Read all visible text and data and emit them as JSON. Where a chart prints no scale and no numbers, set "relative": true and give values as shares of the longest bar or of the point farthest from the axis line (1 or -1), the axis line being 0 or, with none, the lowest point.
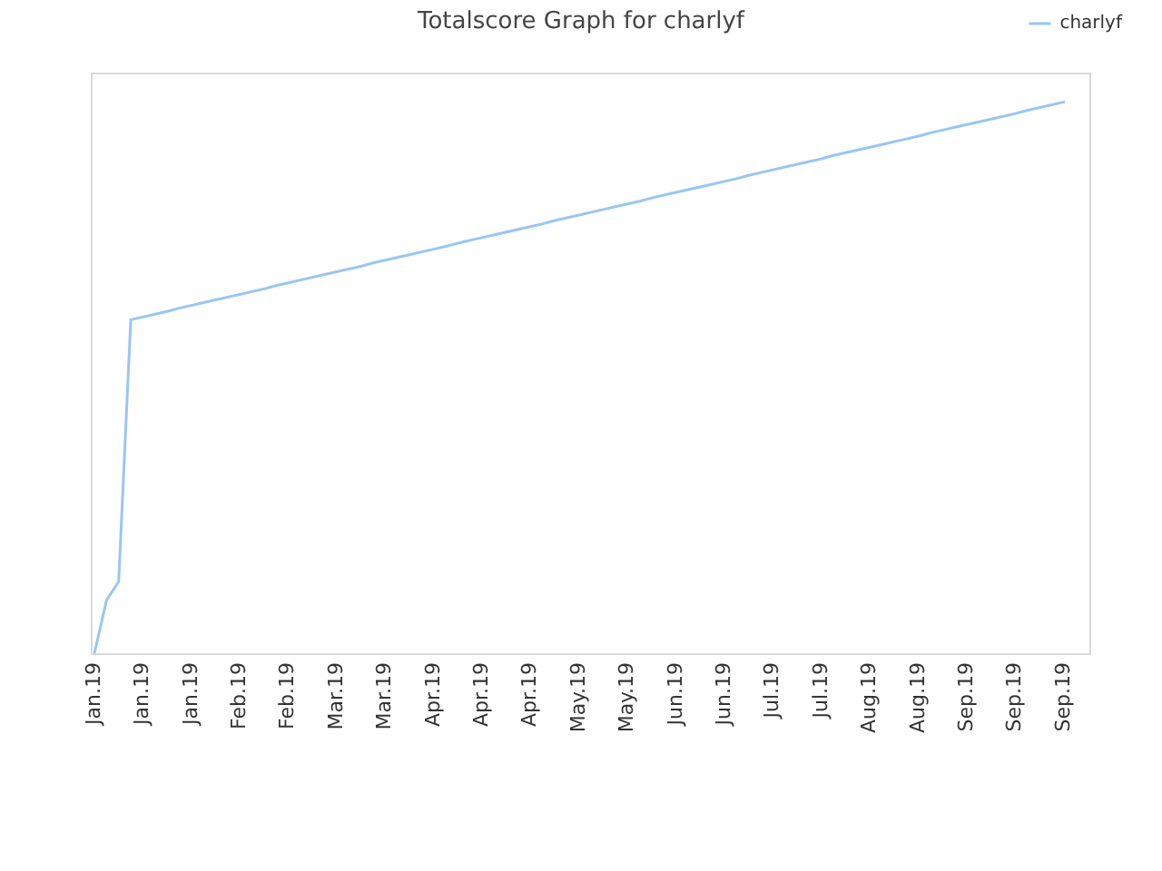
{
  "chart_data": {
    "type": "line",
    "title": "Totalscore Graph for charlyf",
    "relative": true,
    "categories": [
      "Jan.19",
      null,
      null,
      null,
      "Jan.19",
      null,
      null,
      null,
      "Jan.19",
      null,
      null,
      null,
      "Feb.19",
      null,
      null,
      null,
      "Feb.19",
      null,
      null,
      null,
      "Mar.19",
      null,
      null,
      null,
      "Mar.19",
      null,
      null,
      null,
      "Apr.19",
      null,
      null,
      null,
      "Apr.19",
      null,
      null,
      null,
      "Apr.19",
      null,
      null,
      null,
      "May.19",
      null,
      null,
      null,
      "May.19",
      null,
      null,
      null,
      "Jun.19",
      null,
      null,
      null,
      "Jun.19",
      null,
      null,
      null,
      "Jul.19",
      null,
      null,
      null,
      "Jul.19",
      null,
      null,
      null,
      "Aug.19",
      null,
      null,
      null,
      "Aug.19",
      null,
      null,
      null,
      "Sep.19",
      null,
      null,
      null,
      "Sep.19",
      null,
      null,
      null,
      "Sep.19"
    ],
    "series": [
      {
        "name": "charlyf",
        "color": "#98c6f4",
        "values": [
          0,
          0.096,
          0.13,
          0.605,
          0.61,
          0.615,
          0.62,
          0.626,
          0.631,
          0.636,
          0.641,
          0.646,
          0.651,
          0.656,
          0.661,
          0.667,
          0.672,
          0.677,
          0.682,
          0.687,
          0.692,
          0.697,
          0.702,
          0.708,
          0.713,
          0.718,
          0.723,
          0.728,
          0.733,
          0.738,
          0.744,
          0.749,
          0.754,
          0.759,
          0.764,
          0.769,
          0.774,
          0.779,
          0.785,
          0.79,
          0.795,
          0.8,
          0.805,
          0.81,
          0.815,
          0.82,
          0.826,
          0.831,
          0.836,
          0.841,
          0.846,
          0.851,
          0.856,
          0.861,
          0.867,
          0.872,
          0.877,
          0.882,
          0.887,
          0.892,
          0.897,
          0.903,
          0.908,
          0.913,
          0.918,
          0.923,
          0.928,
          0.933,
          0.938,
          0.944,
          0.949,
          0.954,
          0.959,
          0.964,
          0.969,
          0.974,
          0.979,
          0.985,
          0.99,
          0.995,
          1.0
        ]
      }
    ],
    "legend": "top right",
    "marker": "none",
    "line_style": "solid"
  }
}
